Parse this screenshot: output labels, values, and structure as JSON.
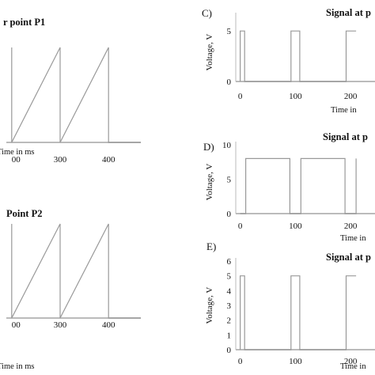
{
  "chart_data": [
    {
      "panel": "A",
      "type": "line",
      "title": "r point P1",
      "xlabel": "Time in ms",
      "x_tick_labels": [
        "00",
        "300",
        "400"
      ],
      "xlim": [
        190,
        440
      ],
      "ylim": [
        0,
        5
      ],
      "series": [
        {
          "x": [
            200,
            200,
            290,
            290,
            380,
            380,
            440
          ],
          "y": [
            5,
            0,
            5,
            0,
            5,
            0,
            0
          ]
        }
      ]
    },
    {
      "panel": "B",
      "type": "line",
      "title": "Point P2",
      "xlabel": "Time in ms",
      "x_tick_labels": [
        "00",
        "300",
        "400"
      ],
      "xlim": [
        190,
        440
      ],
      "ylim": [
        0,
        5
      ],
      "series": [
        {
          "x": [
            200,
            200,
            290,
            290,
            380,
            380,
            440
          ],
          "y": [
            5,
            0,
            5,
            0,
            5,
            0,
            0
          ]
        }
      ]
    },
    {
      "panel": "C",
      "type": "line",
      "label": "C)",
      "title": "Signal at p",
      "xlabel": "Time in",
      "ylabel": "Voltage, V",
      "x_tick_labels": [
        "0",
        "100",
        "200"
      ],
      "y_tick_labels": [
        "0",
        "5"
      ],
      "xlim": [
        -8,
        250
      ],
      "ylim": [
        0,
        6.5
      ],
      "series": [
        {
          "x": [
            0,
            0,
            8,
            8,
            92,
            92,
            108,
            108,
            192,
            192,
            210
          ],
          "y": [
            0,
            5,
            5,
            0,
            0,
            5,
            5,
            0,
            0,
            5,
            5
          ]
        }
      ]
    },
    {
      "panel": "D",
      "type": "line",
      "label": "D)",
      "title": "Signal at p",
      "xlabel": "Time in",
      "ylabel": "Voltage, V",
      "x_tick_labels": [
        "0",
        "100",
        "200"
      ],
      "y_tick_labels": [
        "0",
        "5",
        "10"
      ],
      "xlim": [
        -8,
        250
      ],
      "ylim": [
        0,
        10
      ],
      "series": [
        {
          "x": [
            0,
            10,
            10,
            90,
            90,
            110,
            110,
            190,
            190,
            210,
            210
          ],
          "y": [
            0,
            0,
            8,
            8,
            0,
            0,
            8,
            8,
            0,
            0,
            8
          ]
        }
      ]
    },
    {
      "panel": "E",
      "type": "line",
      "label": "E)",
      "title": "Signal at p",
      "xlabel": "Time in",
      "ylabel": "Voltage, V",
      "x_tick_labels": [
        "0",
        "100",
        "200"
      ],
      "y_tick_labels": [
        "0",
        "1",
        "2",
        "3",
        "4",
        "5",
        "6"
      ],
      "xlim": [
        -8,
        250
      ],
      "ylim": [
        0,
        6
      ],
      "series": [
        {
          "x": [
            0,
            0,
            8,
            8,
            92,
            92,
            108,
            108,
            192,
            192,
            210
          ],
          "y": [
            0,
            5,
            5,
            0,
            0,
            5,
            5,
            0,
            0,
            5,
            5
          ]
        }
      ]
    }
  ],
  "colors": {
    "axis": "#bbbbbb",
    "signal": "#999999",
    "text": "#111111"
  }
}
